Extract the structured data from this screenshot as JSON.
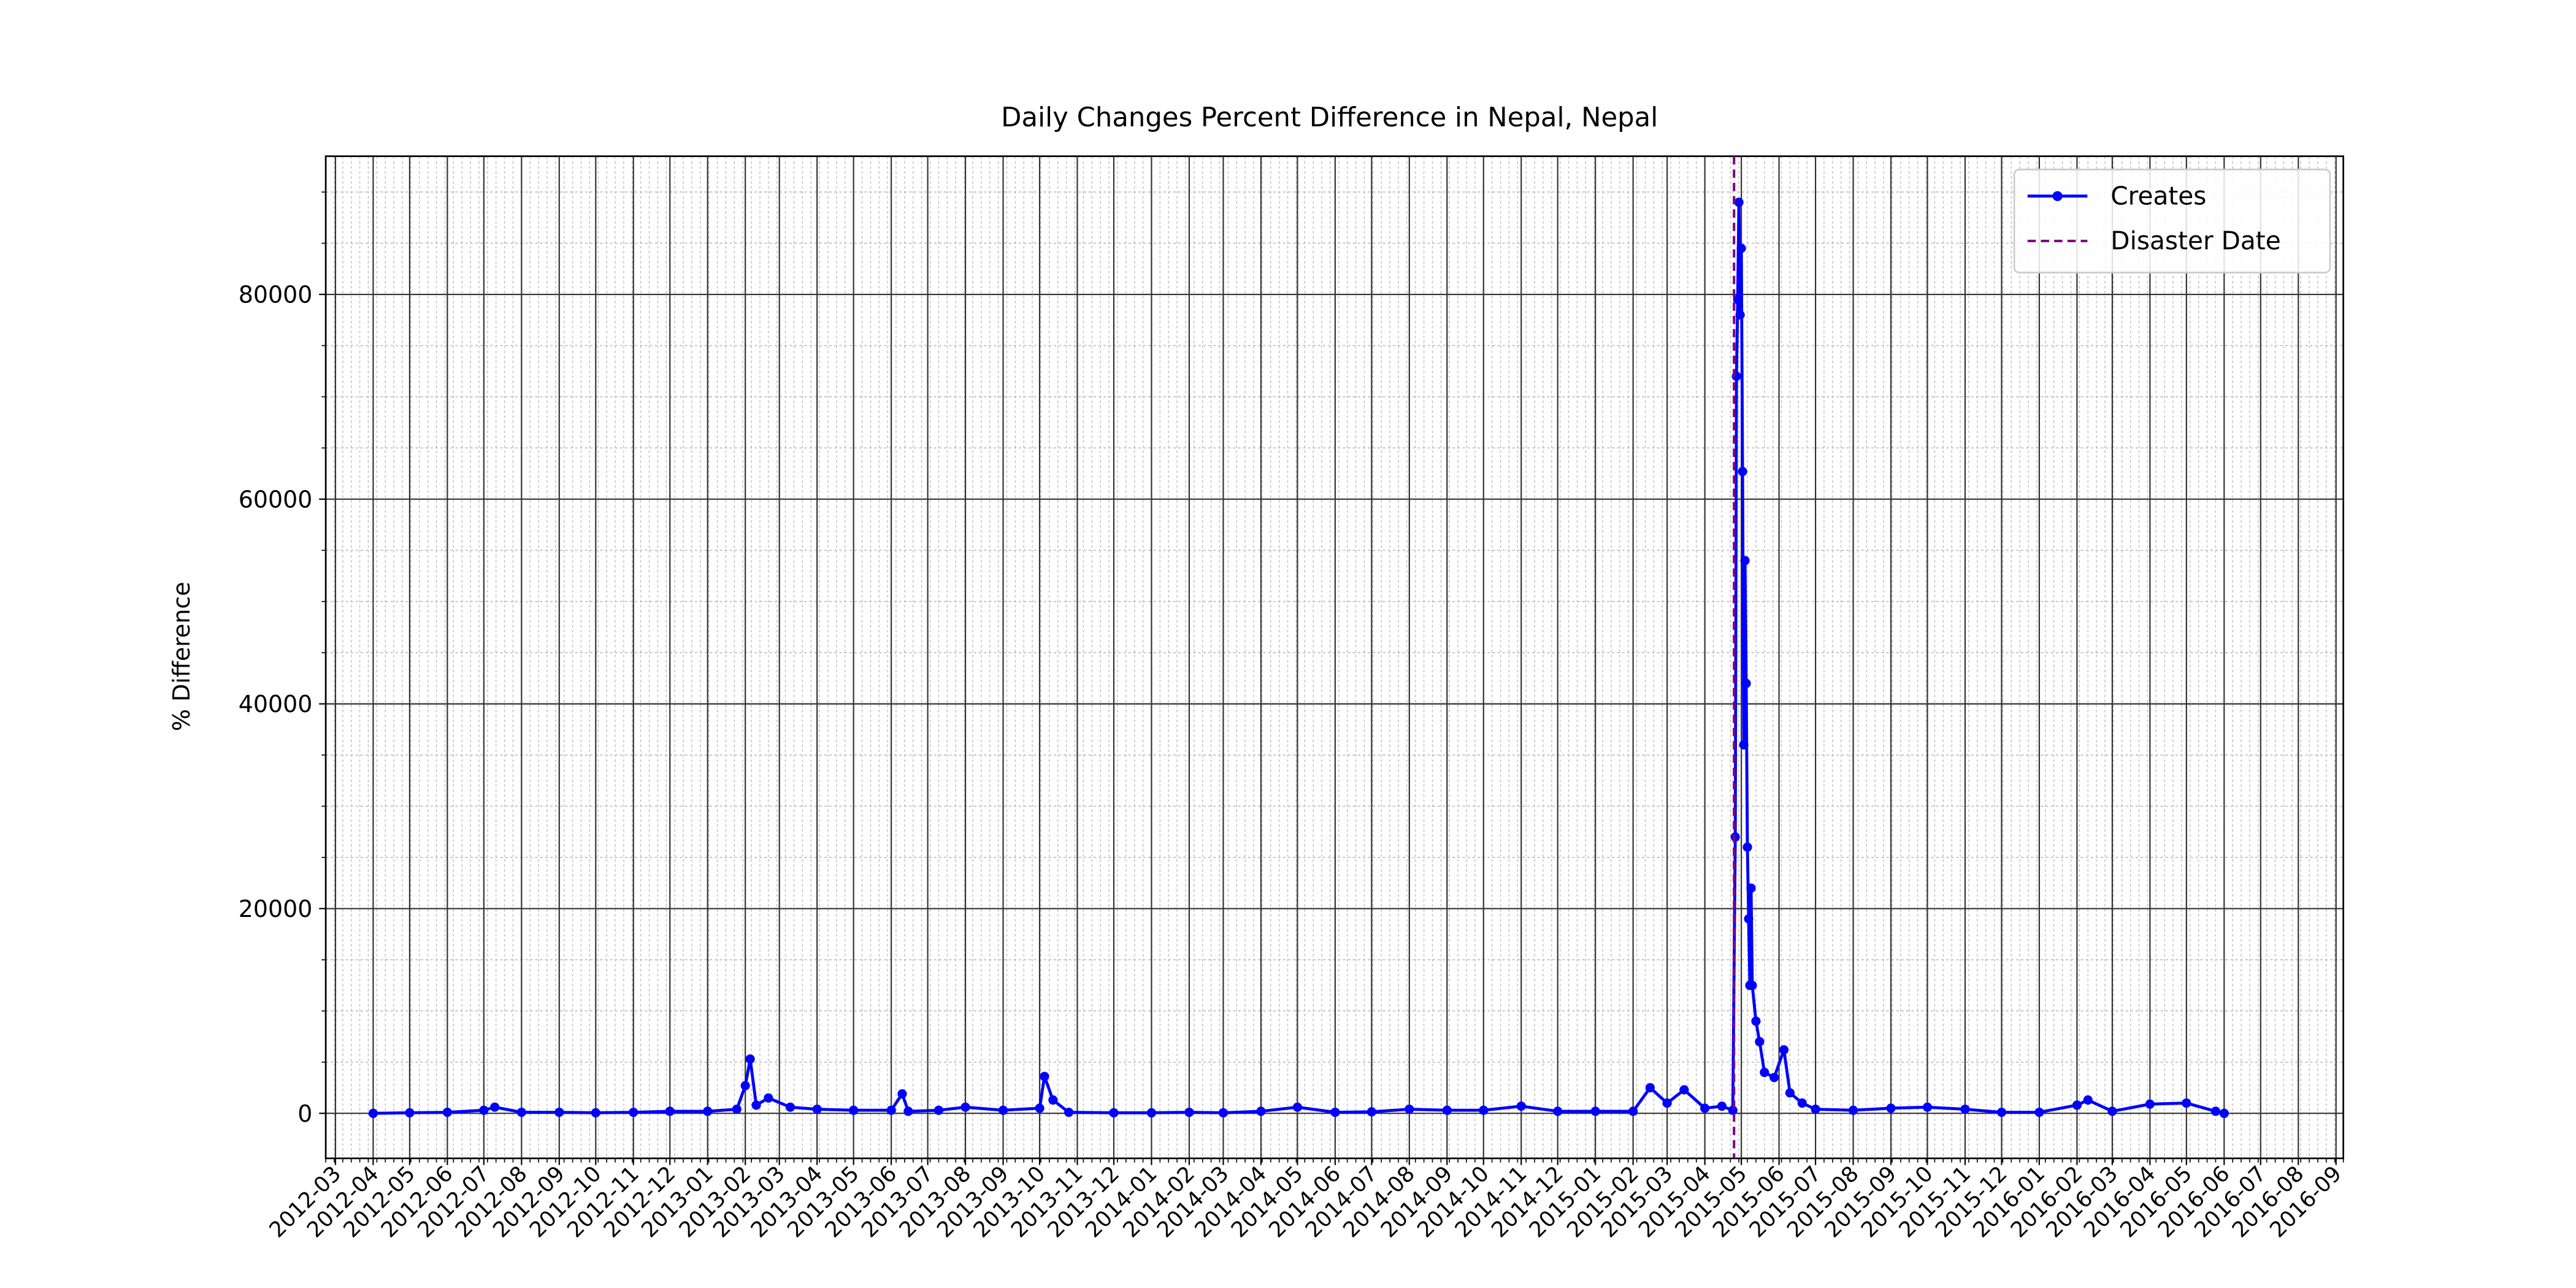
{
  "chart_data": {
    "type": "line",
    "title": "Daily Changes Percent Difference in Nepal, Nepal",
    "y_label": "% Difference",
    "x": [
      "2012-04-01",
      "2012-05-01",
      "2012-06-01",
      "2012-07-01",
      "2012-07-10",
      "2012-08-01",
      "2012-09-01",
      "2012-10-01",
      "2012-11-01",
      "2012-12-01",
      "2013-01-01",
      "2013-01-25",
      "2013-02-01",
      "2013-02-05",
      "2013-02-10",
      "2013-02-20",
      "2013-03-10",
      "2013-04-01",
      "2013-05-01",
      "2013-06-01",
      "2013-06-10",
      "2013-06-15",
      "2013-07-10",
      "2013-08-01",
      "2013-09-01",
      "2013-10-01",
      "2013-10-05",
      "2013-10-12",
      "2013-10-25",
      "2013-12-01",
      "2014-01-01",
      "2014-02-01",
      "2014-03-01",
      "2014-04-01",
      "2014-05-01",
      "2014-06-01",
      "2014-07-01",
      "2014-08-01",
      "2014-09-01",
      "2014-10-01",
      "2014-11-01",
      "2014-12-01",
      "2015-01-01",
      "2015-02-01",
      "2015-02-15",
      "2015-03-01",
      "2015-03-15",
      "2015-04-01",
      "2015-04-15",
      "2015-04-24",
      "2015-04-26",
      "2015-04-27",
      "2015-04-28",
      "2015-04-29",
      "2015-04-30",
      "2015-05-01",
      "2015-05-02",
      "2015-05-03",
      "2015-05-04",
      "2015-05-05",
      "2015-05-06",
      "2015-05-07",
      "2015-05-08",
      "2015-05-09",
      "2015-05-10",
      "2015-05-13",
      "2015-05-16",
      "2015-05-20",
      "2015-05-28",
      "2015-06-05",
      "2015-06-10",
      "2015-06-20",
      "2015-07-01",
      "2015-08-01",
      "2015-09-01",
      "2015-10-01",
      "2015-11-01",
      "2015-12-01",
      "2016-01-01",
      "2016-02-01",
      "2016-02-10",
      "2016-03-01",
      "2016-04-01",
      "2016-05-01",
      "2016-05-25",
      "2016-06-01"
    ],
    "series": [
      {
        "name": "Creates",
        "color": "#0000ff",
        "values": [
          0,
          50,
          100,
          300,
          600,
          100,
          100,
          50,
          100,
          200,
          200,
          400,
          2700,
          5300,
          800,
          1500,
          600,
          400,
          300,
          300,
          1900,
          200,
          300,
          600,
          300,
          500,
          3600,
          1300,
          100,
          50,
          50,
          100,
          50,
          200,
          600,
          100,
          150,
          400,
          300,
          300,
          700,
          200,
          200,
          200,
          2500,
          1000,
          2300,
          500,
          700,
          300,
          27000,
          72000,
          79500,
          89000,
          78000,
          84500,
          62700,
          36000,
          54000,
          42000,
          26000,
          19000,
          12500,
          22000,
          12500,
          9000,
          7000,
          4000,
          3500,
          6200,
          2000,
          1000,
          400,
          300,
          500,
          600,
          400,
          100,
          100,
          800,
          1300,
          200,
          900,
          1000,
          200,
          0
        ]
      }
    ],
    "disaster_date": "2015-04-25",
    "disaster_label": "Disaster Date",
    "disaster_color": "#800080",
    "xlim": [
      "2012-02-22",
      "2016-09-07"
    ],
    "xticks": [
      "2012-03",
      "2012-04",
      "2012-05",
      "2012-06",
      "2012-07",
      "2012-08",
      "2012-09",
      "2012-10",
      "2012-11",
      "2012-12",
      "2013-01",
      "2013-02",
      "2013-03",
      "2013-04",
      "2013-05",
      "2013-06",
      "2013-07",
      "2013-08",
      "2013-09",
      "2013-10",
      "2013-11",
      "2013-12",
      "2014-01",
      "2014-02",
      "2014-03",
      "2014-04",
      "2014-05",
      "2014-06",
      "2014-07",
      "2014-08",
      "2014-09",
      "2014-10",
      "2014-11",
      "2014-12",
      "2015-01",
      "2015-02",
      "2015-03",
      "2015-04",
      "2015-05",
      "2015-06",
      "2015-07",
      "2015-08",
      "2015-09",
      "2015-10",
      "2015-11",
      "2015-12",
      "2016-01",
      "2016-02",
      "2016-03",
      "2016-04",
      "2016-05",
      "2016-06",
      "2016-07",
      "2016-08",
      "2016-09"
    ],
    "ylim": [
      -4400,
      93500
    ],
    "yticks": [
      0,
      20000,
      40000,
      60000,
      80000
    ],
    "grid": true,
    "minor_grid": true,
    "legend": "upper right"
  }
}
